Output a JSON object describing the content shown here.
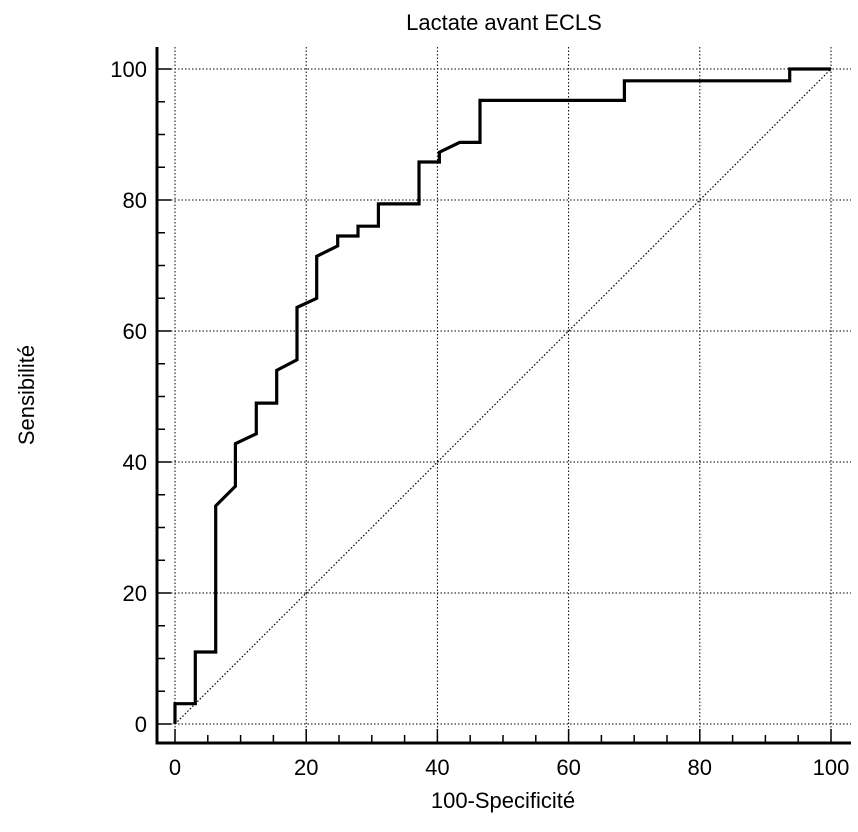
{
  "chart_data": {
    "type": "line",
    "title": "Lactate avant ECLS",
    "xlabel": "100-Specificité",
    "ylabel": "Sensibilité",
    "xlim": [
      0,
      100
    ],
    "ylim": [
      0,
      100
    ],
    "x_ticks": [
      0,
      20,
      40,
      60,
      80,
      100
    ],
    "y_ticks": [
      0,
      20,
      40,
      60,
      80,
      100
    ],
    "x_tick_labels": [
      "0",
      "20",
      "40",
      "60",
      "80",
      "100"
    ],
    "y_tick_labels": [
      "0",
      "20",
      "40",
      "60",
      "80",
      "100"
    ],
    "grid": true,
    "series": [
      {
        "style": "step",
        "color": "#000000",
        "x": [
          0,
          0,
          3.1,
          3.1,
          6.2,
          6.2,
          9.2,
          9.2,
          12.4,
          12.4,
          15.5,
          15.5,
          18.6,
          18.6,
          21.6,
          21.6,
          24.8,
          24.8,
          27.9,
          27.9,
          31.0,
          31.0,
          37.2,
          37.2,
          40.3,
          40.3,
          43.4,
          43.4,
          46.5,
          46.5,
          68.5,
          68.5,
          93.7,
          93.7,
          100
        ],
        "y": [
          0,
          3.1,
          3.1,
          11.0,
          11.0,
          33.3,
          36.3,
          42.8,
          44.3,
          49.0,
          49.0,
          54.0,
          55.6,
          63.6,
          65.0,
          71.4,
          73.0,
          74.5,
          74.5,
          76.0,
          76.0,
          79.4,
          79.4,
          85.8,
          85.8,
          87.3,
          88.8,
          88.8,
          88.8,
          95.2,
          95.2,
          98.2,
          98.2,
          100,
          100
        ]
      },
      {
        "style": "dotted",
        "color": "#000000",
        "x": [
          0,
          100
        ],
        "y": [
          0,
          100
        ]
      }
    ]
  }
}
